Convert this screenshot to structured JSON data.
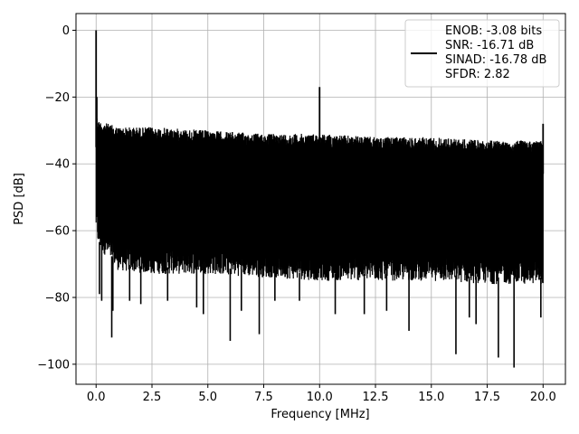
{
  "chart_data": {
    "type": "line",
    "title": "",
    "xlabel": "Frequency [MHz]",
    "ylabel": "PSD [dB]",
    "xlim": [
      -0.9,
      21.0
    ],
    "ylim": [
      -106,
      5
    ],
    "grid": true,
    "legend_position": "top-right",
    "x_ticks": [
      0.0,
      2.5,
      5.0,
      7.5,
      10.0,
      12.5,
      15.0,
      17.5,
      20.0
    ],
    "x_tick_labels": [
      "0.0",
      "2.5",
      "5.0",
      "7.5",
      "10.0",
      "12.5",
      "15.0",
      "17.5",
      "20.0"
    ],
    "y_ticks": [
      0,
      -20,
      -40,
      -60,
      -80,
      -100
    ],
    "y_tick_labels": [
      "0",
      "−20",
      "−40",
      "−60",
      "−80",
      "−100"
    ],
    "legend_lines": [
      "ENOB: -3.08 bits",
      "SNR: -16.71 dB",
      "SINAD: -16.78 dB",
      "SFDR: 2.82"
    ],
    "series": [
      {
        "color": "#000000",
        "x_range": [
          0.0,
          20.0
        ],
        "noise_envelope": {
          "x": [
            0.0,
            0.1,
            1.0,
            2.5,
            5.0,
            7.5,
            10.0,
            12.5,
            15.0,
            17.5,
            20.0
          ],
          "upper": [
            -25,
            -27,
            -29,
            -29,
            -30,
            -31,
            -31,
            -32,
            -32,
            -33,
            -33
          ],
          "lower": [
            -60,
            -65,
            -72,
            -73,
            -73,
            -74,
            -75,
            -75,
            -75,
            -76,
            -76
          ]
        },
        "peaks": [
          {
            "x": 0.0,
            "y": 0
          },
          {
            "x": 0.03,
            "y": -20
          },
          {
            "x": 10.0,
            "y": -17
          },
          {
            "x": 20.0,
            "y": -28
          }
        ],
        "dips": [
          {
            "x": 0.15,
            "y": -79
          },
          {
            "x": 0.25,
            "y": -81
          },
          {
            "x": 0.7,
            "y": -92
          },
          {
            "x": 0.75,
            "y": -84
          },
          {
            "x": 1.5,
            "y": -81
          },
          {
            "x": 2.0,
            "y": -82
          },
          {
            "x": 3.2,
            "y": -81
          },
          {
            "x": 4.5,
            "y": -83
          },
          {
            "x": 4.8,
            "y": -85
          },
          {
            "x": 6.0,
            "y": -93
          },
          {
            "x": 6.5,
            "y": -84
          },
          {
            "x": 7.3,
            "y": -91
          },
          {
            "x": 8.0,
            "y": -81
          },
          {
            "x": 9.1,
            "y": -81
          },
          {
            "x": 10.7,
            "y": -85
          },
          {
            "x": 12.0,
            "y": -85
          },
          {
            "x": 13.0,
            "y": -84
          },
          {
            "x": 14.0,
            "y": -90
          },
          {
            "x": 16.1,
            "y": -97
          },
          {
            "x": 16.7,
            "y": -86
          },
          {
            "x": 17.0,
            "y": -88
          },
          {
            "x": 18.0,
            "y": -98
          },
          {
            "x": 18.7,
            "y": -101
          },
          {
            "x": 19.9,
            "y": -86
          }
        ]
      }
    ]
  }
}
